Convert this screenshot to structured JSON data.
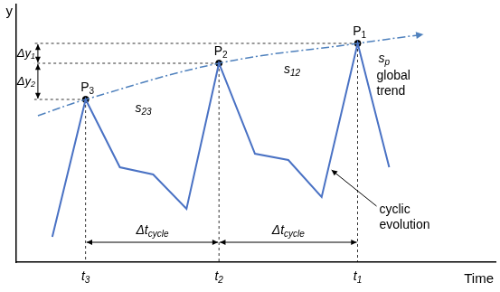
{
  "chart_data": {
    "type": "line",
    "xlabel": "Time",
    "ylabel": "y",
    "xlim": [
      0,
      532
    ],
    "ylim": [
      0,
      285
    ],
    "tick_labels": false,
    "grid": false,
    "series": [
      {
        "name": "cyclic evolution",
        "color": "#4a72c4",
        "line_style": "solid",
        "marker": "none",
        "x": [
          40,
          77,
          115,
          152,
          189,
          225,
          265,
          302,
          339,
          379,
          414
        ],
        "values": [
          28,
          180,
          105,
          97,
          59,
          220,
          120,
          113,
          72,
          242,
          105
        ]
      },
      {
        "name": "global trend",
        "color": "#4f81bd",
        "line_style": "dashdot",
        "marker": "arrow",
        "x": [
          24,
          77,
          225,
          379,
          452
        ],
        "values": [
          162,
          180,
          220,
          242,
          252
        ]
      }
    ],
    "peaks": [
      {
        "label": {
          "text": "P",
          "sub": "1"
        },
        "x": 379,
        "y": 242,
        "time": {
          "text": "t",
          "sub": "1"
        }
      },
      {
        "label": {
          "text": "P",
          "sub": "2"
        },
        "x": 225,
        "y": 220,
        "time": {
          "text": "t",
          "sub": "2"
        }
      },
      {
        "label": {
          "text": "P",
          "sub": "3"
        },
        "x": 77,
        "y": 180,
        "time": {
          "text": "t",
          "sub": "3"
        }
      }
    ],
    "intervals": [
      {
        "label": {
          "text": "Δy",
          "sub": "1"
        },
        "axis": "y",
        "between": [
          0,
          1
        ],
        "at": 24
      },
      {
        "label": {
          "text": "Δy",
          "sub": "2"
        },
        "axis": "y",
        "between": [
          1,
          2
        ],
        "at": 24
      },
      {
        "label": {
          "text": "Δt",
          "sub": "cycle"
        },
        "axis": "x",
        "between": [
          2,
          1
        ],
        "at": 22
      },
      {
        "label": {
          "text": "Δt",
          "sub": "cycle"
        },
        "axis": "x",
        "between": [
          1,
          0
        ],
        "at": 22
      }
    ],
    "annotations": [
      {
        "text": "s",
        "sub": "23",
        "x": 132,
        "y": 170
      },
      {
        "text": "s",
        "sub": "12",
        "x": 297,
        "y": 213
      },
      {
        "text": "s",
        "sub": "p",
        "x": 402,
        "y": 225
      }
    ],
    "callouts": [
      {
        "lines": [
          "global",
          "trend"
        ],
        "x": 400,
        "y": 206
      },
      {
        "lines": [
          "cyclic",
          "evolution"
        ],
        "x": 403,
        "y": 58,
        "arrow_to": [
          350,
          102
        ]
      }
    ]
  }
}
